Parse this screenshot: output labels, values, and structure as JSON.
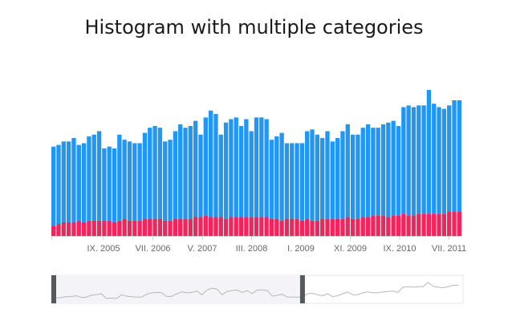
{
  "title": "Histogram with multiple categories",
  "colors": {
    "series_a": "#2196F3",
    "series_b": "#F0255E",
    "axis": "#cfcfcf",
    "navigator_bg": "#f4f4f8",
    "navigator_line": "#b8b8b8",
    "handle": "#55595c"
  },
  "chart_data": {
    "type": "bar",
    "stacked": true,
    "x_ticks": [
      "IX. 2005",
      "VII. 2006",
      "V. 2007",
      "III. 2008",
      "I. 2009",
      "XI. 2009",
      "IX. 2010",
      "VII. 2011"
    ],
    "ylim": [
      0,
      100
    ],
    "grid": false,
    "series": [
      {
        "values": [
          6,
          7,
          8,
          8,
          8,
          9,
          8,
          9,
          9,
          9,
          9,
          9,
          8,
          9,
          10,
          9,
          9,
          9,
          10,
          10,
          10,
          10,
          9,
          9,
          10,
          10,
          10,
          10,
          11,
          11,
          12,
          11,
          11,
          11,
          10,
          11,
          11,
          11,
          11,
          11,
          11,
          11,
          11,
          10,
          10,
          9,
          10,
          10,
          10,
          9,
          10,
          9,
          9,
          10,
          10,
          10,
          10,
          10,
          11,
          10,
          10,
          11,
          11,
          12,
          12,
          12,
          11,
          12,
          12,
          13,
          12,
          12,
          13,
          13,
          13,
          13,
          13,
          13,
          14,
          14,
          14
        ]
      },
      {
        "values": [
          46,
          46,
          47,
          47,
          49,
          44,
          46,
          49,
          50,
          52,
          42,
          43,
          43,
          50,
          46,
          46,
          45,
          45,
          50,
          53,
          54,
          53,
          46,
          47,
          51,
          55,
          53,
          54,
          56,
          48,
          57,
          62,
          60,
          48,
          56,
          57,
          58,
          53,
          57,
          50,
          58,
          58,
          57,
          46,
          48,
          51,
          44,
          44,
          44,
          45,
          51,
          53,
          50,
          47,
          51,
          45,
          47,
          51,
          54,
          49,
          49,
          52,
          54,
          51,
          51,
          53,
          55,
          55,
          52,
          62,
          64,
          63,
          63,
          63,
          72,
          64,
          62,
          61,
          62,
          65,
          65
        ]
      }
    ]
  },
  "navigator": {
    "selection_start": 0.0,
    "selection_end": 0.61
  }
}
